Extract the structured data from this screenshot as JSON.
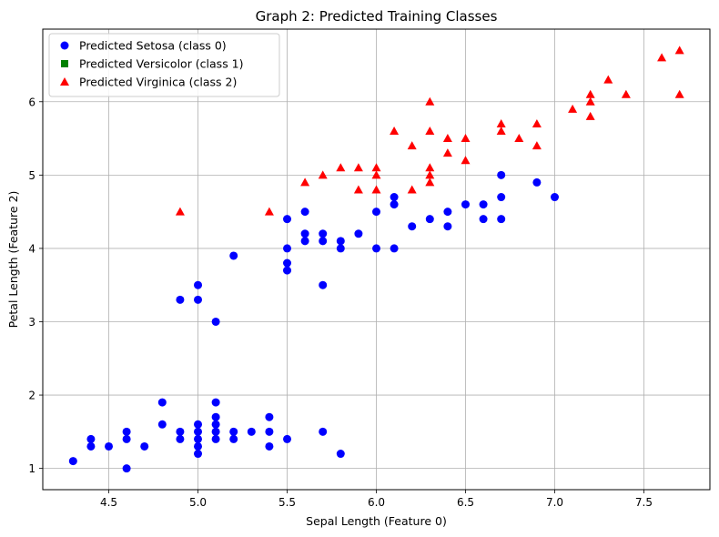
{
  "chart_data": {
    "type": "scatter",
    "title": "Graph 2: Predicted Training Classes",
    "xlabel": "Sepal Length (Feature 0)",
    "ylabel": "Petal Length (Feature 2)",
    "xlim": [
      4.13,
      7.87
    ],
    "ylim": [
      0.71,
      6.99
    ],
    "xticks": [
      4.5,
      5.0,
      5.5,
      6.0,
      6.5,
      7.0,
      7.5
    ],
    "xtick_labels": [
      "4.5",
      "5.0",
      "5.5",
      "6.0",
      "6.5",
      "7.0",
      "7.5"
    ],
    "yticks": [
      1,
      2,
      3,
      4,
      5,
      6
    ],
    "ytick_labels": [
      "1",
      "2",
      "3",
      "4",
      "5",
      "6"
    ],
    "grid": true,
    "legend_position": "top-left",
    "series": [
      {
        "name": "Predicted Setosa (class 0)",
        "marker": "circle",
        "color": "#0000ff",
        "points": [
          [
            4.3,
            1.1
          ],
          [
            4.4,
            1.3
          ],
          [
            4.4,
            1.4
          ],
          [
            4.5,
            1.3
          ],
          [
            4.6,
            1.0
          ],
          [
            4.6,
            1.4
          ],
          [
            4.6,
            1.5
          ],
          [
            4.7,
            1.3
          ],
          [
            4.8,
            1.6
          ],
          [
            4.8,
            1.9
          ],
          [
            4.9,
            1.4
          ],
          [
            4.9,
            1.5
          ],
          [
            5.0,
            1.2
          ],
          [
            5.0,
            1.3
          ],
          [
            5.0,
            1.4
          ],
          [
            5.0,
            1.5
          ],
          [
            5.0,
            1.6
          ],
          [
            5.1,
            1.4
          ],
          [
            5.1,
            1.5
          ],
          [
            5.1,
            1.6
          ],
          [
            5.1,
            1.7
          ],
          [
            5.1,
            1.9
          ],
          [
            5.2,
            1.4
          ],
          [
            5.2,
            1.5
          ],
          [
            5.3,
            1.5
          ],
          [
            5.4,
            1.3
          ],
          [
            5.4,
            1.5
          ],
          [
            5.4,
            1.7
          ],
          [
            5.5,
            1.4
          ],
          [
            5.7,
            1.5
          ],
          [
            5.8,
            1.2
          ],
          [
            4.9,
            3.3
          ],
          [
            5.0,
            3.3
          ],
          [
            5.0,
            3.5
          ],
          [
            5.1,
            3.0
          ],
          [
            5.2,
            3.9
          ],
          [
            5.5,
            3.7
          ],
          [
            5.5,
            3.8
          ],
          [
            5.5,
            4.0
          ],
          [
            5.5,
            4.4
          ],
          [
            5.6,
            4.1
          ],
          [
            5.6,
            4.2
          ],
          [
            5.6,
            4.5
          ],
          [
            5.7,
            3.5
          ],
          [
            5.7,
            4.1
          ],
          [
            5.7,
            4.2
          ],
          [
            5.8,
            4.0
          ],
          [
            5.8,
            4.1
          ],
          [
            5.9,
            4.2
          ],
          [
            6.0,
            4.0
          ],
          [
            6.0,
            4.5
          ],
          [
            6.1,
            4.0
          ],
          [
            6.1,
            4.6
          ],
          [
            6.1,
            4.7
          ],
          [
            6.2,
            4.3
          ],
          [
            6.3,
            4.4
          ],
          [
            6.4,
            4.3
          ],
          [
            6.4,
            4.5
          ],
          [
            6.5,
            4.6
          ],
          [
            6.6,
            4.4
          ],
          [
            6.6,
            4.6
          ],
          [
            6.7,
            4.4
          ],
          [
            6.7,
            4.7
          ],
          [
            6.7,
            5.0
          ],
          [
            6.9,
            4.9
          ],
          [
            7.0,
            4.7
          ]
        ]
      },
      {
        "name": "Predicted Versicolor (class 1)",
        "marker": "square",
        "color": "#008000",
        "points": []
      },
      {
        "name": "Predicted Virginica (class 2)",
        "marker": "triangle",
        "color": "#ff0000",
        "points": [
          [
            4.9,
            4.5
          ],
          [
            5.4,
            4.5
          ],
          [
            5.6,
            4.9
          ],
          [
            5.7,
            5.0
          ],
          [
            5.8,
            5.1
          ],
          [
            5.9,
            4.8
          ],
          [
            5.9,
            5.1
          ],
          [
            6.0,
            4.8
          ],
          [
            6.0,
            5.0
          ],
          [
            6.0,
            5.1
          ],
          [
            6.1,
            5.6
          ],
          [
            6.2,
            4.8
          ],
          [
            6.2,
            5.4
          ],
          [
            6.3,
            4.9
          ],
          [
            6.3,
            5.0
          ],
          [
            6.3,
            5.1
          ],
          [
            6.3,
            5.6
          ],
          [
            6.3,
            6.0
          ],
          [
            6.4,
            5.3
          ],
          [
            6.4,
            5.5
          ],
          [
            6.5,
            5.2
          ],
          [
            6.5,
            5.5
          ],
          [
            6.7,
            5.6
          ],
          [
            6.7,
            5.7
          ],
          [
            6.8,
            5.5
          ],
          [
            6.9,
            5.4
          ],
          [
            6.9,
            5.7
          ],
          [
            7.1,
            5.9
          ],
          [
            7.2,
            5.8
          ],
          [
            7.2,
            6.0
          ],
          [
            7.2,
            6.1
          ],
          [
            7.3,
            6.3
          ],
          [
            7.4,
            6.1
          ],
          [
            7.6,
            6.6
          ],
          [
            7.7,
            6.1
          ],
          [
            7.7,
            6.7
          ]
        ]
      }
    ]
  }
}
